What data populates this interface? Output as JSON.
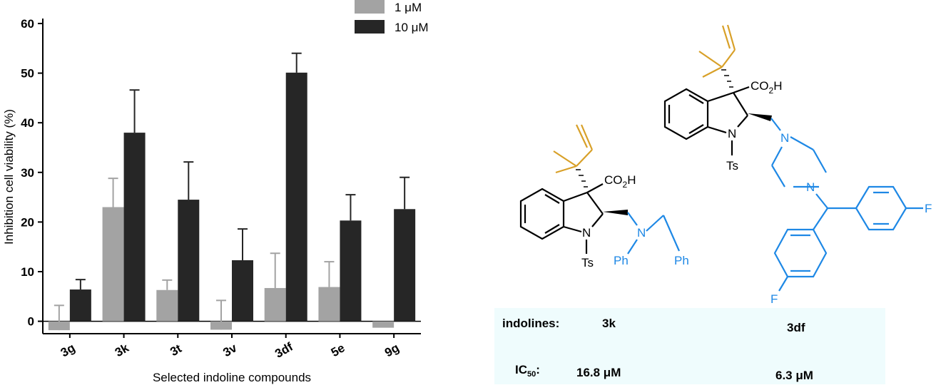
{
  "chart_data": {
    "type": "bar",
    "x_label": "Selected indoline compounds",
    "y_label": "Inhibition cell viability (%)",
    "categories": [
      "3g",
      "3k",
      "3t",
      "3v",
      "3df",
      "5e",
      "9g"
    ],
    "series": [
      {
        "name": "1 μM",
        "color": "#a3a3a3",
        "values": [
          -1.8,
          23,
          6.3,
          -1.7,
          6.7,
          6.9,
          -1.3
        ],
        "errors": [
          5.0,
          5.8,
          2.0,
          5.9,
          7.0,
          5.1,
          null
        ]
      },
      {
        "name": "10 μM",
        "color": "#262626",
        "values": [
          6.4,
          38,
          24.5,
          12.3,
          50.1,
          20.3,
          22.6
        ],
        "errors": [
          2.0,
          8.6,
          7.6,
          6.3,
          3.9,
          5.2,
          6.4
        ]
      }
    ],
    "ylim": [
      -2.5,
      61
    ],
    "yticks": [
      0,
      10,
      20,
      30,
      40,
      50,
      60
    ]
  },
  "structures": {
    "mol_3k": {
      "co2h": [
        "CO",
        "2",
        "H"
      ],
      "n_ring": "N",
      "ts": "Ts",
      "n_amine": "N",
      "ph1": "Ph",
      "ph2": "Ph"
    },
    "mol_3df": {
      "co2h": [
        "CO",
        "2",
        "H"
      ],
      "n_ring": "N",
      "ts": "Ts",
      "n_top": "N",
      "n_bottom": "N",
      "f1": "F",
      "f2": "F"
    }
  },
  "table": {
    "rows": [
      [
        "indolines:",
        "3k",
        "3df"
      ],
      [
        [
          "IC",
          "50",
          ":"
        ],
        "16.8 μM",
        "6.3 μM"
      ]
    ]
  }
}
